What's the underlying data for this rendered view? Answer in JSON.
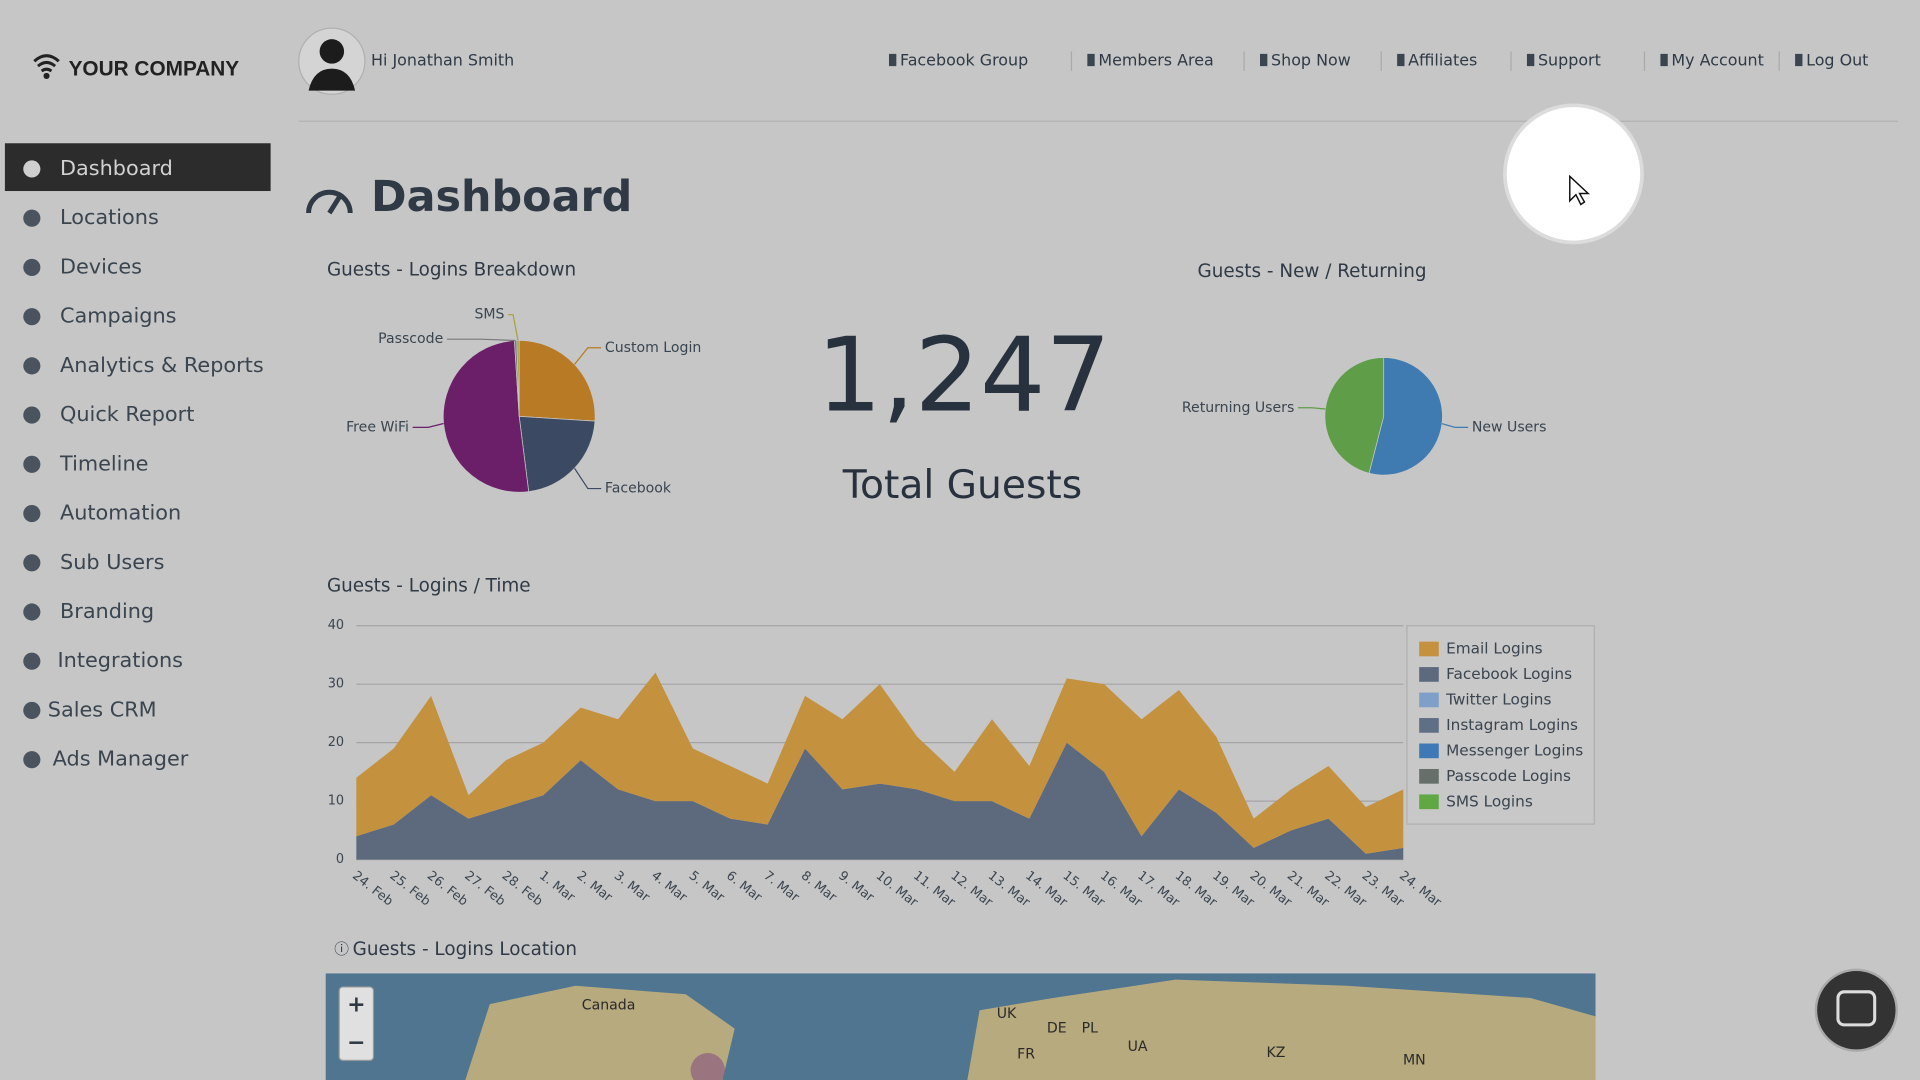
{
  "brand": "YOUR COMPANY",
  "greeting": "Hi Jonathan Smith",
  "top_nav": [
    "Facebook Group",
    "Members Area",
    "Shop Now",
    "Affiliates",
    "Support",
    "My Account",
    "Log Out"
  ],
  "sidebar": [
    "Dashboard",
    "Locations",
    "Devices",
    "Campaigns",
    "Analytics & Reports",
    "Quick Report",
    "Timeline",
    "Automation",
    "Sub Users",
    "Branding",
    "Integrations",
    "Sales CRM",
    "Ads Manager"
  ],
  "page_title": "Dashboard",
  "total": {
    "value": "1,247",
    "label": "Total Guests"
  },
  "chart_data": [
    {
      "type": "pie",
      "title": "Guests - Logins Breakdown",
      "categories": [
        "Custom Login",
        "Facebook",
        "Free WiFi",
        "Passcode",
        "SMS"
      ],
      "values": [
        26,
        22,
        51,
        0.5,
        0.5
      ],
      "colors": [
        "#b87a24",
        "#3b4a62",
        "#6b1f69",
        "#7a7a7a",
        "#a8a040"
      ]
    },
    {
      "type": "pie",
      "title": "Guests - New / Returning",
      "categories": [
        "New Users",
        "Returning Users"
      ],
      "values": [
        54,
        46
      ],
      "colors": [
        "#3f7bb1",
        "#5f9d49"
      ]
    },
    {
      "type": "area",
      "stacked": true,
      "title": "Guests - Logins / Time",
      "categories": [
        "24. Feb",
        "25. Feb",
        "26. Feb",
        "27. Feb",
        "28. Feb",
        "1. Mar",
        "2. Mar",
        "3. Mar",
        "4. Mar",
        "5. Mar",
        "6. Mar",
        "7. Mar",
        "8. Mar",
        "9. Mar",
        "10. Mar",
        "11. Mar",
        "12. Mar",
        "13. Mar",
        "14. Mar",
        "15. Mar",
        "16. Mar",
        "17. Mar",
        "18. Mar",
        "19. Mar",
        "20. Mar",
        "21. Mar",
        "22. Mar",
        "23. Mar",
        "24. Mar"
      ],
      "series": [
        {
          "name": "Email Logins",
          "color": "#c4913f",
          "values": [
            10,
            13,
            17,
            4,
            8,
            9,
            9,
            12,
            22,
            9,
            9,
            7,
            9,
            12,
            17,
            9,
            5,
            14,
            9,
            11,
            15,
            20,
            17,
            13,
            5,
            7,
            9,
            8,
            10
          ]
        },
        {
          "name": "Facebook Logins",
          "color": "#5d6a7e",
          "values": [
            4,
            6,
            11,
            7,
            9,
            11,
            17,
            12,
            10,
            10,
            7,
            6,
            19,
            12,
            13,
            12,
            10,
            10,
            7,
            20,
            15,
            4,
            12,
            8,
            2,
            5,
            7,
            1,
            2
          ]
        },
        {
          "name": "Twitter Logins",
          "color": "#7f9fc8",
          "values": [
            0,
            0,
            0,
            0,
            0,
            0,
            0,
            0,
            0,
            0,
            0,
            0,
            0,
            0,
            0,
            0,
            0,
            0,
            0,
            0,
            0,
            0,
            0,
            0,
            0,
            0,
            0,
            0,
            0
          ]
        },
        {
          "name": "Instagram Logins",
          "color": "#5f6f86",
          "values": [
            0,
            0,
            0,
            0,
            0,
            0,
            0,
            0,
            0,
            0,
            0,
            0,
            0,
            0,
            0,
            0,
            0,
            0,
            0,
            0,
            0,
            0,
            0,
            0,
            0,
            0,
            0,
            0,
            0
          ]
        },
        {
          "name": "Messenger Logins",
          "color": "#3d7ab5",
          "values": [
            0,
            0,
            0,
            0,
            0,
            0,
            0,
            0,
            0,
            0,
            0,
            0,
            0,
            0,
            0,
            0,
            0,
            0,
            0,
            0,
            0,
            0,
            0,
            0,
            0,
            0,
            0,
            0,
            0
          ]
        },
        {
          "name": "Passcode Logins",
          "color": "#666f6a",
          "values": [
            0,
            0,
            0,
            0,
            0,
            0,
            0,
            0,
            0,
            0,
            0,
            0,
            0,
            0,
            0,
            0,
            0,
            0,
            0,
            0,
            0,
            0,
            0,
            0,
            0,
            0,
            0,
            0,
            0
          ]
        },
        {
          "name": "SMS Logins",
          "color": "#5fa844",
          "values": [
            0,
            0,
            0,
            0,
            0,
            0,
            0,
            0,
            0,
            0,
            0,
            0,
            0,
            0,
            0,
            0,
            0,
            0,
            0,
            0,
            0,
            0,
            0,
            0,
            0,
            0,
            0,
            0,
            0
          ]
        }
      ],
      "ylim": [
        0,
        40
      ],
      "yticks": [
        0,
        10,
        20,
        30,
        40
      ],
      "grid": true,
      "legend": "right"
    }
  ],
  "map": {
    "title": "Guests - Logins Location",
    "zoom_in": "+",
    "zoom_out": "−",
    "labels": [
      "Canada",
      "UK",
      "DE",
      "PL",
      "FR",
      "UA",
      "KZ",
      "MN"
    ]
  }
}
